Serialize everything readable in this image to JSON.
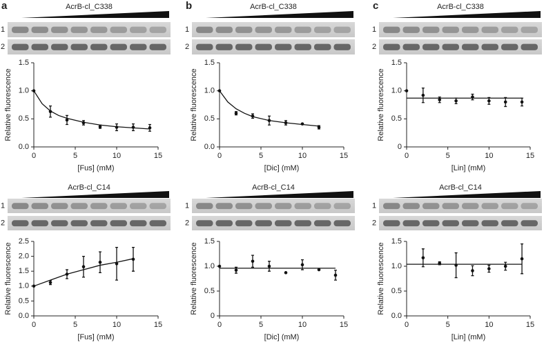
{
  "chart_data": [
    {
      "type": "scatter",
      "panel": "a",
      "gel_title": "AcrB-cl_C338",
      "gel_rows": [
        "1",
        "2"
      ],
      "xlabel": "[Fus] (mM)",
      "ylabel": "Relative fluorescence",
      "xlim": [
        0,
        15
      ],
      "ylim": [
        0,
        1.5
      ],
      "xticks": [
        0,
        5,
        10,
        15
      ],
      "yticks": [
        {
          "value": 0,
          "label": "0.0"
        },
        {
          "value": 0.5,
          "label": "0.5"
        },
        {
          "value": 1,
          "label": "1.0"
        },
        {
          "value": 1.5,
          "label": "1.5"
        }
      ],
      "series": [
        {
          "color": "#111111",
          "x": [
            0,
            2,
            4,
            6,
            8,
            10,
            12,
            14
          ],
          "values": [
            1.0,
            0.63,
            0.48,
            0.43,
            0.36,
            0.35,
            0.35,
            0.34
          ],
          "errors": [
            0,
            0.1,
            0.08,
            0.04,
            0.03,
            0.06,
            0.06,
            0.06
          ]
        },
        {
          "type": "line",
          "color": "#111111",
          "x": [
            0,
            1,
            2,
            3,
            4,
            6,
            8,
            10,
            12,
            14
          ],
          "values": [
            1.0,
            0.77,
            0.64,
            0.56,
            0.51,
            0.44,
            0.39,
            0.36,
            0.34,
            0.32
          ]
        }
      ]
    },
    {
      "type": "scatter",
      "panel": "b",
      "gel_title": "AcrB-cl_C338",
      "gel_rows": [
        "1",
        "2"
      ],
      "xlabel": "[Dic] (mM)",
      "ylabel": "Relative fluorescence",
      "xlim": [
        0,
        15
      ],
      "ylim": [
        0,
        1.5
      ],
      "xticks": [
        0,
        5,
        10,
        15
      ],
      "yticks": [
        {
          "value": 0,
          "label": "0.0"
        },
        {
          "value": 0.5,
          "label": "0.5"
        },
        {
          "value": 1,
          "label": "1.0"
        },
        {
          "value": 1.5,
          "label": "1.5"
        }
      ],
      "series": [
        {
          "color": "#111111",
          "x": [
            0,
            2,
            4,
            6,
            8,
            10,
            12
          ],
          "values": [
            1.0,
            0.6,
            0.55,
            0.47,
            0.43,
            0.41,
            0.35
          ],
          "errors": [
            0,
            0.03,
            0.04,
            0.08,
            0.04,
            0.01,
            0.03
          ]
        },
        {
          "type": "line",
          "color": "#111111",
          "x": [
            0,
            1,
            2,
            3,
            4,
            6,
            8,
            10,
            12
          ],
          "values": [
            1.0,
            0.8,
            0.68,
            0.6,
            0.54,
            0.47,
            0.43,
            0.4,
            0.37
          ]
        }
      ]
    },
    {
      "type": "scatter",
      "panel": "c",
      "gel_title": "AcrB-cl_C338",
      "gel_rows": [
        "1",
        "2"
      ],
      "xlabel": "[Lin] (mM)",
      "ylabel": "Relative fluorescence",
      "xlim": [
        0,
        15
      ],
      "ylim": [
        0,
        1.5
      ],
      "xticks": [
        0,
        5,
        10,
        15
      ],
      "yticks": [
        {
          "value": 0,
          "label": "0"
        },
        {
          "value": 0.5,
          "label": "0.5"
        },
        {
          "value": 1,
          "label": "1.0"
        },
        {
          "value": 1.5,
          "label": "1.5"
        }
      ],
      "series": [
        {
          "color": "#111111",
          "x": [
            0,
            2,
            4,
            6,
            8,
            10,
            12,
            14
          ],
          "values": [
            1.0,
            0.92,
            0.84,
            0.82,
            0.89,
            0.82,
            0.8,
            0.8
          ],
          "errors": [
            0,
            0.13,
            0.05,
            0.05,
            0.05,
            0.06,
            0.08,
            0.07
          ]
        },
        {
          "type": "line",
          "color": "#111111",
          "x": [
            0,
            14
          ],
          "values": [
            0.87,
            0.87
          ]
        }
      ]
    },
    {
      "type": "scatter",
      "gel_title": "AcrB-cl_C14",
      "gel_rows": [
        "1",
        "2"
      ],
      "xlabel": "[Fus] (mM)",
      "ylabel": "Relative fluorescence",
      "xlim": [
        0,
        15
      ],
      "ylim": [
        0,
        2.5
      ],
      "xticks": [
        0,
        5,
        10,
        15
      ],
      "yticks": [
        {
          "value": 0,
          "label": "0.0"
        },
        {
          "value": 0.5,
          "label": "0.5"
        },
        {
          "value": 1,
          "label": "1.0"
        },
        {
          "value": 1.5,
          "label": "1.5"
        },
        {
          "value": 2,
          "label": "2.0"
        },
        {
          "value": 2.5,
          "label": "2.5"
        }
      ],
      "series": [
        {
          "color": "#111111",
          "x": [
            0,
            2,
            4,
            6,
            8,
            10,
            12
          ],
          "values": [
            1.0,
            1.12,
            1.4,
            1.65,
            1.8,
            1.75,
            1.9
          ],
          "errors": [
            0,
            0.07,
            0.15,
            0.35,
            0.35,
            0.55,
            0.4
          ]
        },
        {
          "type": "line",
          "color": "#111111",
          "x": [
            0,
            2,
            4,
            6,
            8,
            10,
            12
          ],
          "values": [
            1.0,
            1.2,
            1.4,
            1.55,
            1.7,
            1.8,
            1.92
          ]
        }
      ]
    },
    {
      "type": "scatter",
      "gel_title": "AcrB-cl_C14",
      "gel_rows": [
        "1",
        "2"
      ],
      "xlabel": "[Dic] (mM)",
      "ylabel": "Relative fluorescence",
      "xlim": [
        0,
        15
      ],
      "ylim": [
        0,
        1.5
      ],
      "xticks": [
        0,
        5,
        10,
        15
      ],
      "yticks": [
        {
          "value": 0,
          "label": "0"
        },
        {
          "value": 0.5,
          "label": "0.5"
        },
        {
          "value": 1,
          "label": "1.0"
        },
        {
          "value": 1.5,
          "label": "1.5"
        }
      ],
      "series": [
        {
          "color": "#111111",
          "x": [
            0,
            2,
            4,
            6,
            8,
            10,
            12,
            14
          ],
          "values": [
            1.0,
            0.92,
            1.1,
            1.0,
            0.87,
            1.03,
            0.93,
            0.82
          ],
          "errors": [
            0,
            0.06,
            0.12,
            0.1,
            0,
            0.1,
            0,
            0.1
          ]
        },
        {
          "type": "line",
          "color": "#111111",
          "x": [
            0,
            14
          ],
          "values": [
            0.96,
            0.96
          ]
        }
      ]
    },
    {
      "type": "scatter",
      "gel_title": "AcrB-cl_C14",
      "gel_rows": [
        "1",
        "2"
      ],
      "xlabel": "[Lin] (mM)",
      "ylabel": "Relative fluorescence",
      "xlim": [
        0,
        15
      ],
      "ylim": [
        0,
        1.5
      ],
      "xticks": [
        0,
        5,
        10,
        15
      ],
      "yticks": [
        {
          "value": 0,
          "label": "0.0"
        },
        {
          "value": 0.5,
          "label": "0.5"
        },
        {
          "value": 1,
          "label": "1.0"
        },
        {
          "value": 1.5,
          "label": "1.5"
        }
      ],
      "series": [
        {
          "color": "#111111",
          "x": [
            2,
            4,
            6,
            8,
            10,
            12,
            14
          ],
          "values": [
            1.17,
            1.06,
            1.02,
            0.91,
            0.95,
            1.0,
            1.15
          ],
          "errors": [
            0.18,
            0.03,
            0.25,
            0.1,
            0.07,
            0.08,
            0.3
          ]
        },
        {
          "type": "line",
          "color": "#111111",
          "x": [
            0,
            14
          ],
          "values": [
            1.04,
            1.04
          ]
        }
      ]
    }
  ]
}
